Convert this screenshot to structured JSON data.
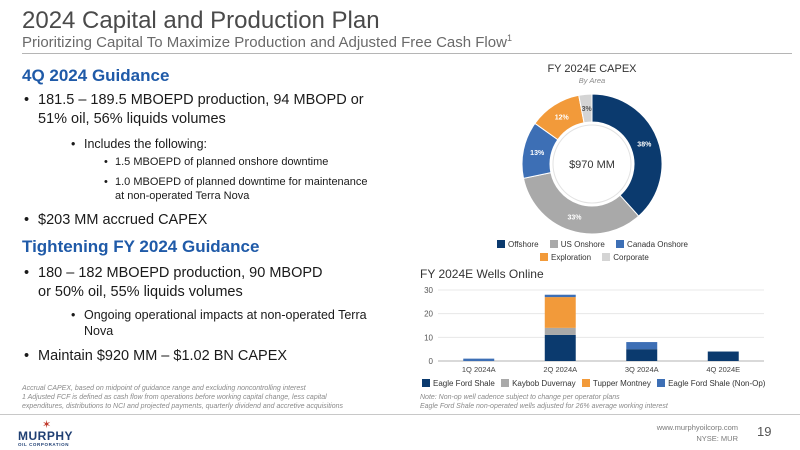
{
  "header": {
    "title": "2024 Capital and Production Plan",
    "subtitle": "Prioritizing Capital To Maximize Production and Adjusted Free Cash Flow",
    "subtitle_sup": "1"
  },
  "guidance_4q": {
    "heading": "4Q 2024 Guidance",
    "production_line1": "181.5 – 189.5 MBOEPD production, 94 MBOPD or",
    "production_line2": "51% oil, 56% liquids volumes",
    "includes": "Includes the following:",
    "downtime_onshore": "1.5 MBOEPD of planned onshore downtime",
    "downtime_maint_line1": "1.0 MBOEPD of planned downtime for maintenance",
    "downtime_maint_line2": "at non-operated Terra Nova",
    "capex": "$203 MM accrued CAPEX"
  },
  "guidance_fy": {
    "heading": "Tightening FY 2024 Guidance",
    "production_line1": "180 – 182 MBOEPD production, 90 MBOPD",
    "production_line2": "or 50% oil, 55% liquids volumes",
    "impacts_line1": "Ongoing operational impacts at non-operated Terra",
    "impacts_line2": "Nova",
    "capex": "Maintain $920 MM – $1.02 BN CAPEX"
  },
  "footnotes": {
    "line1": "Accrual CAPEX, based on midpoint of guidance range and excluding noncontrolling interest",
    "line2": "1 Adjusted FCF is defined as cash flow from operations before working capital change, less capital",
    "line3": "expenditures, distributions to NCI and projected payments, quarterly dividend and accretive acquisitions"
  },
  "chart_notes": {
    "line1": "Note: Non-op well cadence subject to change per operator plans",
    "line2": "Eagle Ford Shale non-operated wells adjusted for 26% average working interest"
  },
  "footer": {
    "logo_name": "MURPHY",
    "logo_sub": "OIL CORPORATION",
    "website": "www.murphyoilcorp.com",
    "ticker": "NYSE: MUR",
    "page_number": "19"
  },
  "colors": {
    "offshore": "#0b3a6e",
    "us_onshore": "#a9a9a9",
    "canada_onshore": "#3d6fb5",
    "exploration": "#f29a3a",
    "corporate": "#d4d4d4",
    "kaybob": "#a9a9a9",
    "tupper": "#f29a3a",
    "ef_nonop": "#3d6fb5",
    "heading_blue": "#1f5aa8"
  },
  "chart_data": [
    {
      "type": "pie",
      "title": "FY 2024E CAPEX",
      "subtitle": "By Area",
      "center_label": "$970 MM",
      "categories": [
        "Offshore",
        "US Onshore",
        "Canada Onshore",
        "Exploration",
        "Corporate"
      ],
      "values": [
        38,
        33,
        13,
        12,
        3
      ],
      "value_labels": [
        "38%",
        "33%",
        "13%",
        "12%",
        "3%"
      ],
      "legend_position": "bottom"
    },
    {
      "type": "bar",
      "stacked": true,
      "title": "FY 2024E Wells Online",
      "categories": [
        "1Q 2024A",
        "2Q 2024A",
        "3Q 2024A",
        "4Q 2024E"
      ],
      "series": [
        {
          "name": "Eagle Ford Shale",
          "values": [
            0,
            11,
            5,
            4
          ]
        },
        {
          "name": "Kaybob Duvernay",
          "values": [
            0,
            3,
            0,
            0
          ]
        },
        {
          "name": "Tupper Montney",
          "values": [
            0,
            13,
            0,
            0
          ]
        },
        {
          "name": "Eagle Ford Shale (Non-Op)",
          "values": [
            1,
            1,
            3,
            0
          ]
        }
      ],
      "yticks": [
        "0",
        "10",
        "20",
        "30"
      ],
      "ylim": [
        0,
        30
      ],
      "grid": true,
      "legend_position": "bottom"
    }
  ]
}
